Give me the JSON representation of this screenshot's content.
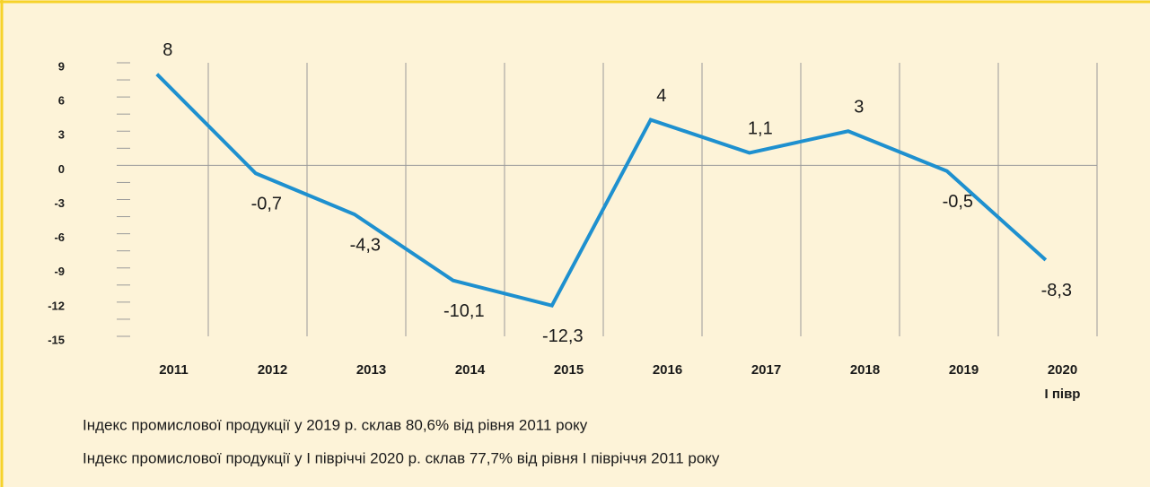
{
  "chart_data": {
    "type": "line",
    "categories": [
      "2011",
      "2012",
      "2013",
      "2014",
      "2015",
      "2016",
      "2017",
      "2018",
      "2019",
      "2020"
    ],
    "category_note": "І півр",
    "series": [
      {
        "color": "#1e90cf",
        "values": [
          8,
          -0.7,
          -4.3,
          -10.1,
          -12.3,
          4,
          1.1,
          3,
          -0.5,
          -8.3
        ],
        "value_labels": [
          "8",
          "-0,7",
          "-4,3",
          "-10,1",
          "-12,3",
          "4",
          "1,1",
          "3",
          "-0,5",
          "-8,3"
        ]
      }
    ],
    "ylim": [
      -15,
      9
    ],
    "yticks": [
      9,
      6,
      3,
      0,
      -3,
      -6,
      -9,
      -12,
      -15
    ],
    "grid": true,
    "notes": [
      "Індекс промислової продукції у 2019 р. склав 80,6% від рівня 2011 року",
      "Індекс промислової продукції у І півріччі 2020 р. склав 77,7% від рівня І півріччя 2011 року"
    ]
  }
}
